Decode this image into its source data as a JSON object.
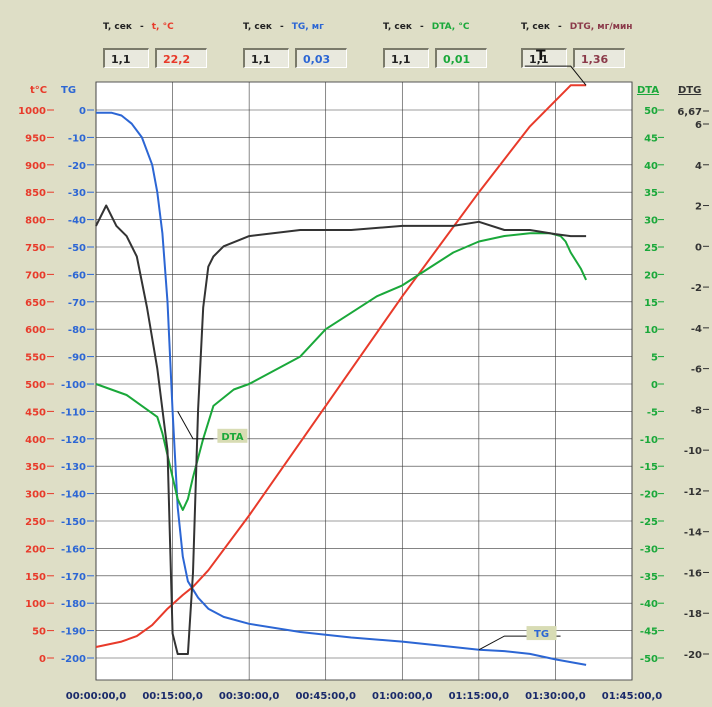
{
  "header": {
    "groups": [
      {
        "tlabel": "T, сек",
        "dash": "-",
        "qty": "t, °C",
        "tval": "1,1",
        "qval": "22,2",
        "color": "red"
      },
      {
        "tlabel": "T, сек",
        "dash": "-",
        "qty": "TG, мг",
        "tval": "1,1",
        "qval": "0,03",
        "color": "blue"
      },
      {
        "tlabel": "T, сек",
        "dash": "-",
        "qty": "DTA, °C",
        "tval": "1,1",
        "qval": "0,01",
        "color": "green"
      },
      {
        "tlabel": "T, сек",
        "dash": "-",
        "qty": "DTG, мг/мин",
        "tval": "1,1",
        "qval": "1,36",
        "color": "maroon"
      }
    ]
  },
  "colors": {
    "temperature": "#e83a2a",
    "tg": "#2c66d4",
    "dta": "#1aa83a",
    "dtg": "#333333",
    "background": "#dedec6",
    "plot": "#ffffff"
  },
  "chart_data": {
    "type": "line",
    "xlabel": "",
    "x_unit": "hh:mm:ss,s",
    "x_ticks": [
      "00:00:00,0",
      "00:15:00,0",
      "00:30:00,0",
      "00:45:00,0",
      "01:00:00,0",
      "01:15:00,0",
      "01:30:00,0",
      "01:45:00,0"
    ],
    "xlim_min": [
      0,
      105
    ],
    "grid": true,
    "axes": {
      "temp": {
        "label": "t°C",
        "ticks": [
          "1000",
          "950",
          "900",
          "850",
          "800",
          "750",
          "700",
          "650",
          "600",
          "550",
          "500",
          "450",
          "400",
          "350",
          "300",
          "250",
          "200",
          "150",
          "100",
          "50",
          "0"
        ],
        "ylim": [
          0,
          1000
        ]
      },
      "tg": {
        "label": "TG",
        "ticks": [
          "0",
          "-10",
          "-20",
          "-30",
          "-40",
          "-50",
          "-60",
          "-70",
          "-80",
          "-90",
          "-100",
          "-110",
          "-120",
          "-130",
          "-140",
          "-150",
          "-160",
          "-170",
          "-180",
          "-190",
          "-200"
        ],
        "ylim": [
          -200,
          0
        ]
      },
      "dta": {
        "label": "DTA",
        "ticks": [
          "50",
          "45",
          "40",
          "35",
          "30",
          "25",
          "20",
          "15",
          "10",
          "5",
          "0",
          "-5",
          "-10",
          "-15",
          "-20",
          "-25",
          "-30",
          "-35",
          "-40",
          "-45",
          "-50"
        ],
        "ylim": [
          -50,
          50
        ]
      },
      "dtg": {
        "label": "DTG",
        "ticks": [
          "6,67",
          "6",
          "4",
          "2",
          "0",
          "-2",
          "-4",
          "-6",
          "-8",
          "-10",
          "-12",
          "-14",
          "-16",
          "-18",
          "-20"
        ],
        "ylim": [
          -20,
          6.67
        ]
      }
    },
    "series": [
      {
        "name": "T",
        "axis": "temp",
        "x": [
          0,
          5,
          8,
          11,
          14,
          17,
          19,
          22,
          30,
          45,
          60,
          75,
          85,
          93,
          96
        ],
        "y": [
          20,
          30,
          40,
          60,
          90,
          115,
          130,
          160,
          260,
          460,
          660,
          850,
          970,
          1045,
          1045
        ]
      },
      {
        "name": "TG",
        "axis": "tg",
        "x": [
          0,
          3,
          5,
          7,
          9,
          11,
          12,
          13,
          14,
          15,
          16,
          17,
          18,
          20,
          22,
          25,
          30,
          40,
          50,
          60,
          70,
          75,
          80,
          85,
          90,
          93,
          96
        ],
        "y": [
          -1,
          -1,
          -2,
          -5,
          -10,
          -20,
          -30,
          -45,
          -70,
          -110,
          -145,
          -163,
          -172,
          -178,
          -182,
          -185,
          -187.5,
          -190.5,
          -192.5,
          -194,
          -196,
          -197,
          -197.5,
          -198.5,
          -200.5,
          -201.5,
          -202.5
        ]
      },
      {
        "name": "DTA",
        "axis": "dta",
        "x": [
          0,
          3,
          6,
          9,
          12,
          13,
          14,
          15,
          16,
          17,
          18,
          19,
          21,
          23,
          27,
          30,
          40,
          45,
          50,
          55,
          60,
          65,
          70,
          75,
          80,
          85,
          89,
          91,
          92,
          93,
          95,
          96
        ],
        "y": [
          0,
          -1,
          -2,
          -4,
          -6,
          -9,
          -13,
          -17,
          -21,
          -23,
          -21,
          -17,
          -10,
          -4,
          -1,
          0,
          5,
          10,
          13,
          16,
          18,
          21,
          24,
          26,
          27,
          27.5,
          27.5,
          27,
          26,
          24,
          21,
          19
        ]
      },
      {
        "name": "DTG",
        "axis": "dtg",
        "x": [
          0,
          2,
          4,
          6,
          8,
          10,
          12,
          14,
          15,
          16,
          17,
          18,
          19,
          20,
          21,
          22,
          23,
          25,
          28,
          30,
          40,
          50,
          60,
          70,
          75,
          80,
          85,
          90,
          93,
          96
        ],
        "y": [
          1,
          2,
          1,
          0.5,
          -0.5,
          -3,
          -6,
          -10,
          -19,
          -20,
          -20,
          -20,
          -16,
          -8,
          -3,
          -1,
          -0.5,
          0,
          0.3,
          0.5,
          0.8,
          0.8,
          1,
          1,
          1.2,
          0.8,
          0.8,
          0.6,
          0.5,
          0.5
        ]
      }
    ],
    "annotations": [
      {
        "text": "T",
        "series": "T",
        "at": [
          96,
          1045
        ],
        "leader": [
          [
            84,
            1080
          ],
          [
            93,
            1080
          ],
          [
            96,
            1045
          ]
        ]
      },
      {
        "text": "DTA",
        "series": "DTA",
        "at": [
          16,
          -10
        ],
        "leader": [
          [
            16,
            -5
          ],
          [
            19,
            -10
          ],
          [
            23,
            -10
          ]
        ]
      },
      {
        "text": "TG",
        "series": "TG",
        "at": [
          75,
          -196
        ],
        "leader": [
          [
            75,
            -197
          ],
          [
            80,
            -192
          ],
          [
            91,
            -192
          ]
        ]
      }
    ]
  }
}
